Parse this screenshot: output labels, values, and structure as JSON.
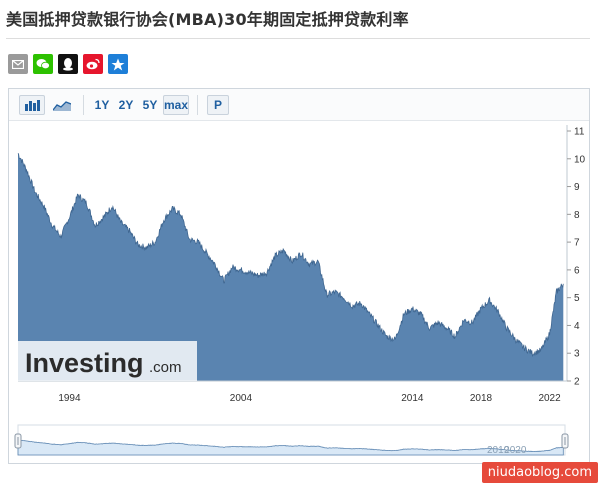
{
  "page": {
    "title": "美国抵押贷款银行协会(MBA)30年期固定抵押贷款利率"
  },
  "share": [
    {
      "name": "email-icon",
      "color": "#999999"
    },
    {
      "name": "wechat-icon",
      "color": "#2dc100"
    },
    {
      "name": "qq-icon",
      "color": "#111111"
    },
    {
      "name": "weibo-icon",
      "color": "#e6162d"
    },
    {
      "name": "qzone-icon",
      "color": "#1e7fd8"
    }
  ],
  "toolbar": {
    "range_1y": "1Y",
    "range_2y": "2Y",
    "range_5y": "5Y",
    "range_max": "max",
    "period": "P",
    "active_range": "max"
  },
  "chart_data": {
    "type": "area",
    "title": "美国抵押贷款银行协会(MBA)30年期固定抵押贷款利率",
    "ylim": [
      2,
      11
    ],
    "xlim": [
      1991,
      2022.9
    ],
    "yticks": [
      "2",
      "3",
      "4",
      "5",
      "6",
      "7",
      "8",
      "9",
      "10",
      "11"
    ],
    "xticks": [
      {
        "label": "1994",
        "value": 1994
      },
      {
        "label": "2004",
        "value": 2004
      },
      {
        "label": "2014",
        "value": 2014
      },
      {
        "label": "2018",
        "value": 2018
      },
      {
        "label": "2022",
        "value": 2022
      }
    ],
    "x": [
      1991.0,
      1991.5,
      1992.0,
      1992.5,
      1993.0,
      1993.5,
      1994.0,
      1994.5,
      1995.0,
      1995.5,
      1996.0,
      1996.5,
      1997.0,
      1997.5,
      1998.0,
      1998.5,
      1999.0,
      1999.5,
      2000.0,
      2000.5,
      2001.0,
      2001.5,
      2002.0,
      2002.5,
      2003.0,
      2003.5,
      2004.0,
      2004.5,
      2005.0,
      2005.5,
      2006.0,
      2006.5,
      2007.0,
      2007.5,
      2008.0,
      2008.5,
      2009.0,
      2009.5,
      2010.0,
      2010.5,
      2011.0,
      2011.5,
      2012.0,
      2012.5,
      2013.0,
      2013.5,
      2014.0,
      2014.5,
      2015.0,
      2015.5,
      2016.0,
      2016.5,
      2017.0,
      2017.5,
      2018.0,
      2018.5,
      2019.0,
      2019.5,
      2020.0,
      2020.5,
      2021.0,
      2021.5,
      2022.0,
      2022.4,
      2022.8
    ],
    "values": [
      10.2,
      9.6,
      8.8,
      8.3,
      7.6,
      7.2,
      7.9,
      8.7,
      8.4,
      7.6,
      7.9,
      8.3,
      7.7,
      7.4,
      6.9,
      6.8,
      7.0,
      7.8,
      8.2,
      8.0,
      7.1,
      7.0,
      6.6,
      6.2,
      5.6,
      6.1,
      6.0,
      5.9,
      5.8,
      5.9,
      6.5,
      6.7,
      6.3,
      6.6,
      6.2,
      6.3,
      5.1,
      5.2,
      5.0,
      4.7,
      4.8,
      4.4,
      4.0,
      3.6,
      3.5,
      4.4,
      4.6,
      4.4,
      3.9,
      4.1,
      3.9,
      3.6,
      4.2,
      4.1,
      4.6,
      4.9,
      4.5,
      3.9,
      3.5,
      3.2,
      3.0,
      3.1,
      3.7,
      5.2,
      5.5
    ],
    "navigator_labels": [
      {
        "label": "2019",
        "value": 2019
      },
      {
        "label": "2020",
        "value": 2020
      }
    ],
    "fill_color": "#5a84b0",
    "nav_fill_color": "#d9e8f6",
    "watermark": {
      "brand": "Investing",
      "suffix": ".com"
    },
    "grid": false
  },
  "site_badge": "niudaoblog.com"
}
